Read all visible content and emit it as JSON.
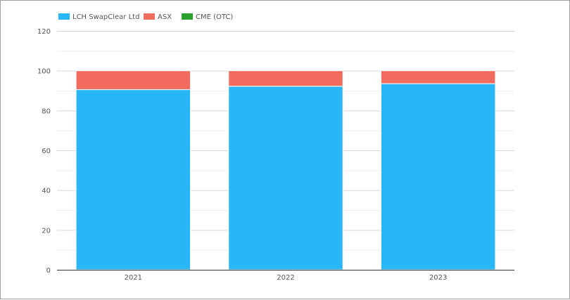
{
  "chart_data": {
    "type": "bar",
    "stacked": true,
    "categories": [
      "2021",
      "2022",
      "2023"
    ],
    "series": [
      {
        "name": "LCH SwapClear Ltd",
        "color": "#29b6f6",
        "values": [
          90.5,
          92.2,
          93.5
        ]
      },
      {
        "name": "ASX",
        "color": "#f26b5f",
        "values": [
          9.5,
          7.8,
          6.5
        ]
      },
      {
        "name": "CME (OTC)",
        "color": "#2ca02c",
        "values": [
          0,
          0,
          0
        ]
      }
    ],
    "ylim": [
      0,
      120
    ],
    "yticks": [
      0,
      20,
      40,
      60,
      80,
      100,
      120
    ],
    "grid": true,
    "legend_position": "top-left",
    "title": "",
    "xlabel": "",
    "ylabel": ""
  }
}
